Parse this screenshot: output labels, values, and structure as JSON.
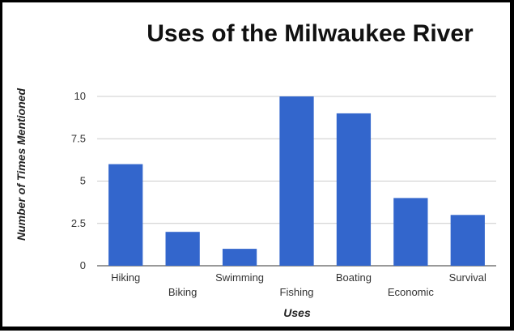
{
  "chart_data": {
    "type": "bar",
    "title": "Uses of the Milwaukee River",
    "xlabel": "Uses",
    "ylabel": "Number of Times Mentioned",
    "categories": [
      "Hiking",
      "Biking",
      "Swimming",
      "Fishing",
      "Boating",
      "Economic",
      "Survival"
    ],
    "values": [
      6,
      2,
      1,
      10,
      9,
      4,
      3
    ],
    "ylim": [
      0,
      10
    ],
    "yticks": [
      0,
      2.5,
      5,
      7.5,
      10
    ],
    "ytick_labels": [
      "0",
      "2.5",
      "5",
      "7.5",
      "10"
    ],
    "grid": true,
    "legend": "none",
    "bar_color": "#3366cc"
  }
}
